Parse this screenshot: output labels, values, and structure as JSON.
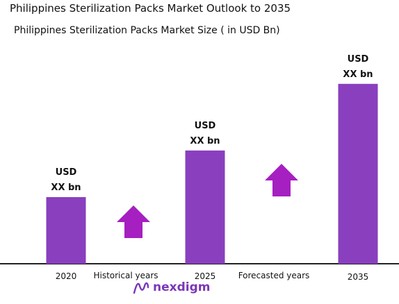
{
  "colors": {
    "bar": "#8a3fbf",
    "arrow": "#a61fc1",
    "logo": "#7a37b8",
    "axis": "#222222"
  },
  "chart_data": {
    "type": "bar",
    "title": "Philippines Sterilization Packs Market Outlook to 2035",
    "subtitle": "Philippines Sterilization Packs Market Size  ( in USD Bn)",
    "categories": [
      "2020",
      "2025",
      "2035"
    ],
    "values": [
      1.0,
      1.7,
      2.7
    ],
    "bar_labels": [
      {
        "line1": "USD",
        "line2": "XX bn"
      },
      {
        "line1": "USD",
        "line2": "XX bn"
      },
      {
        "line1": "USD",
        "line2": "XX bn"
      }
    ],
    "period_labels": [
      "Historical years",
      "Forecasted years"
    ],
    "arrows": [
      "up-arrow",
      "up-arrow"
    ],
    "grid": false,
    "legend": "none"
  },
  "logo": {
    "text": "nexdigm",
    "icon": "nexdigm-logo-icon"
  }
}
